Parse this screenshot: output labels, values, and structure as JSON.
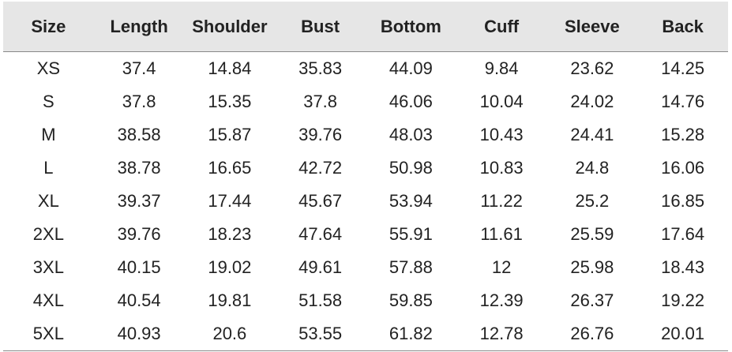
{
  "table": {
    "header": [
      "Size",
      "Length",
      "Shoulder",
      "Bust",
      "Bottom",
      "Cuff",
      "Sleeve",
      "Back"
    ],
    "rows": [
      [
        "XS",
        "37.4",
        "14.84",
        "35.83",
        "44.09",
        "9.84",
        "23.62",
        "14.25"
      ],
      [
        "S",
        "37.8",
        "15.35",
        "37.8",
        "46.06",
        "10.04",
        "24.02",
        "14.76"
      ],
      [
        "M",
        "38.58",
        "15.87",
        "39.76",
        "48.03",
        "10.43",
        "24.41",
        "15.28"
      ],
      [
        "L",
        "38.78",
        "16.65",
        "42.72",
        "50.98",
        "10.83",
        "24.8",
        "16.06"
      ],
      [
        "XL",
        "39.37",
        "17.44",
        "45.67",
        "53.94",
        "11.22",
        "25.2",
        "16.85"
      ],
      [
        "2XL",
        "39.76",
        "18.23",
        "47.64",
        "55.91",
        "11.61",
        "25.59",
        "17.64"
      ],
      [
        "3XL",
        "40.15",
        "19.02",
        "49.61",
        "57.88",
        "12",
        "25.98",
        "18.43"
      ],
      [
        "4XL",
        "40.54",
        "19.81",
        "51.58",
        "59.85",
        "12.39",
        "26.37",
        "19.22"
      ],
      [
        "5XL",
        "40.93",
        "20.6",
        "53.55",
        "61.82",
        "12.78",
        "26.76",
        "20.01"
      ]
    ]
  }
}
